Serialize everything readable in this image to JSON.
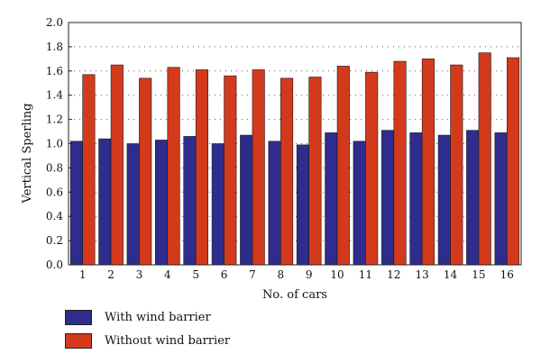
{
  "chart_data": {
    "type": "bar",
    "categories": [
      "1",
      "2",
      "3",
      "4",
      "5",
      "6",
      "7",
      "8",
      "9",
      "10",
      "11",
      "12",
      "13",
      "14",
      "15",
      "16"
    ],
    "series": [
      {
        "name": "With wind barrier",
        "color": "#2e2c8c",
        "values": [
          1.02,
          1.04,
          1.0,
          1.03,
          1.06,
          1.0,
          1.07,
          1.02,
          0.99,
          1.09,
          1.02,
          1.11,
          1.09,
          1.07,
          1.11,
          1.09
        ]
      },
      {
        "name": "Without wind barrier",
        "color": "#d33a1c",
        "values": [
          1.57,
          1.65,
          1.54,
          1.63,
          1.61,
          1.56,
          1.61,
          1.54,
          1.55,
          1.64,
          1.59,
          1.68,
          1.7,
          1.65,
          1.75,
          1.71
        ]
      }
    ],
    "xlabel": "No. of cars",
    "ylabel": "Vertical Sperling",
    "ylim": [
      0,
      2.0
    ],
    "yticks": [
      "0.0",
      "0.2",
      "0.4",
      "0.6",
      "0.8",
      "1.0",
      "1.2",
      "1.4",
      "1.6",
      "1.8",
      "2.0"
    ],
    "grid": "horizontal dotted",
    "legend_position": "bottom-left"
  }
}
